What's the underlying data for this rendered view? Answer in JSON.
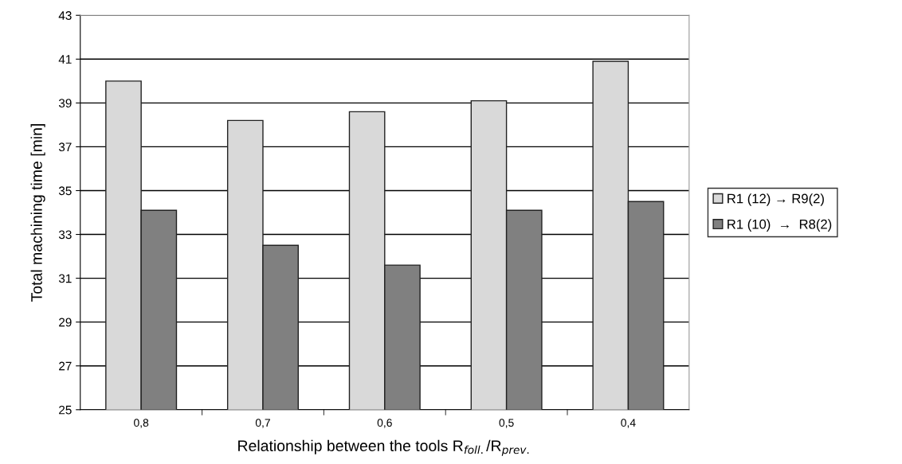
{
  "chart_data": {
    "type": "bar",
    "categories": [
      "0,8",
      "0,7",
      "0,6",
      "0,5",
      "0,4"
    ],
    "series": [
      {
        "name": "R1 (12) → R9(2)",
        "color": "#d9d9d9",
        "values": [
          40.0,
          38.2,
          38.6,
          39.1,
          40.9
        ]
      },
      {
        "name": "R1 (10)  →  R8(2)",
        "color": "#808080",
        "values": [
          34.1,
          32.5,
          31.6,
          34.1,
          34.5
        ]
      }
    ],
    "xlabel": "Relationship between the tools R$_{foll.}$/R$_{prev.}$",
    "ylabel": "Total machining time [min]",
    "ylim": [
      25,
      43
    ],
    "yticks": [
      25,
      27,
      29,
      31,
      33,
      35,
      37,
      39,
      41,
      43
    ],
    "grid": "y",
    "legend": "right"
  }
}
